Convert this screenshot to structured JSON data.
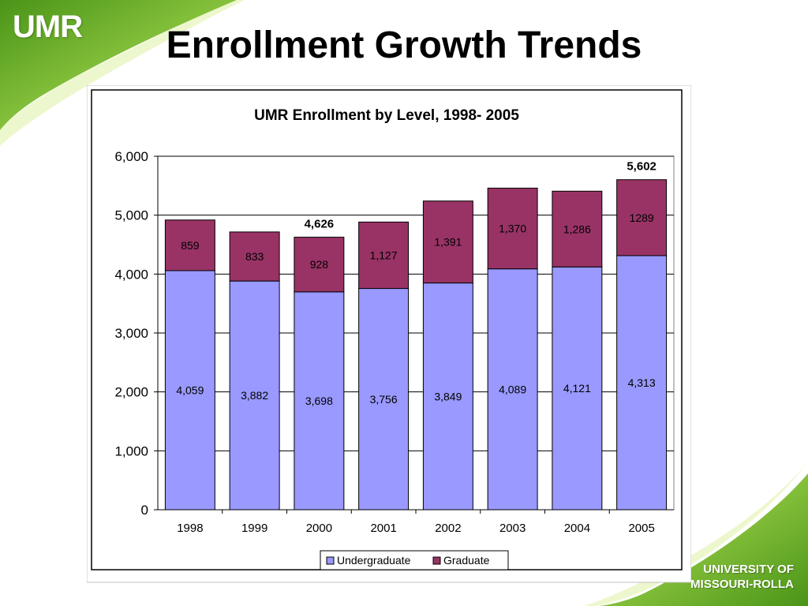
{
  "slide": {
    "logo": "UMR",
    "title": "Enrollment Growth Trends",
    "university_line1": "UNIVERSITY OF",
    "university_line2": "MISSOURI-ROLLA"
  },
  "colors": {
    "undergraduate": "#9999ff",
    "graduate": "#993366",
    "swoosh_light": "#c6e86a",
    "swoosh_dark": "#5a9e1a"
  },
  "chart_data": {
    "type": "bar",
    "stacked": true,
    "title": "UMR Enrollment by Level, 1998- 2005",
    "xlabel": "",
    "ylabel": "",
    "categories": [
      "1998",
      "1999",
      "2000",
      "2001",
      "2002",
      "2003",
      "2004",
      "2005"
    ],
    "series": [
      {
        "name": "Undergraduate",
        "values": [
          4059,
          3882,
          3698,
          3756,
          3849,
          4089,
          4121,
          4313
        ],
        "labels": [
          "4,059",
          "3,882",
          "3,698",
          "3,756",
          "3,849",
          "4,089",
          "4,121",
          "4,313"
        ]
      },
      {
        "name": "Graduate",
        "values": [
          859,
          833,
          928,
          1127,
          1391,
          1370,
          1286,
          1289
        ],
        "labels": [
          "859",
          "833",
          "928",
          "1,127",
          "1,391",
          "1,370",
          "1,286",
          "1289"
        ]
      }
    ],
    "total_labels": [
      {
        "category": "2000",
        "label": "4,626"
      },
      {
        "category": "2005",
        "label": "5,602"
      }
    ],
    "ylim": [
      0,
      6000
    ],
    "yticks": [
      0,
      1000,
      2000,
      3000,
      4000,
      5000,
      6000
    ],
    "ytick_labels": [
      "0",
      "1,000",
      "2,000",
      "3,000",
      "4,000",
      "5,000",
      "6,000"
    ],
    "grid": true,
    "legend_position": "bottom"
  }
}
